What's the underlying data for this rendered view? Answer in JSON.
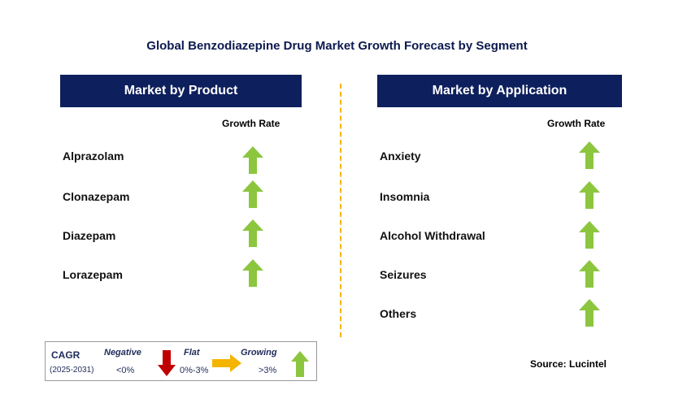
{
  "title": "Global Benzodiazepine Drug Market Growth Forecast by Segment",
  "left_panel": {
    "header": "Market by Product",
    "growth_label": "Growth Rate",
    "items": [
      {
        "label": "Alprazolam",
        "trend": "growing"
      },
      {
        "label": "Clonazepam",
        "trend": "growing"
      },
      {
        "label": "Diazepam",
        "trend": "growing"
      },
      {
        "label": "Lorazepam",
        "trend": "growing"
      }
    ]
  },
  "right_panel": {
    "header": "Market by Application",
    "growth_label": "Growth Rate",
    "items": [
      {
        "label": "Anxiety",
        "trend": "growing"
      },
      {
        "label": "Insomnia",
        "trend": "growing"
      },
      {
        "label": "Alcohol Withdrawal",
        "trend": "growing"
      },
      {
        "label": "Seizures",
        "trend": "growing"
      },
      {
        "label": "Others",
        "trend": "growing"
      }
    ]
  },
  "legend": {
    "cagr": "CAGR",
    "period": "(2025-2031)",
    "negative_label": "Negative",
    "negative_range": "<0%",
    "flat_label": "Flat",
    "flat_range": "0%-3%",
    "growing_label": "Growing",
    "growing_range": ">3%"
  },
  "source": "Source: Lucintel",
  "colors": {
    "header_bg": "#0d1f5c",
    "growing": "#8cc63f",
    "negative": "#c00000",
    "flat": "#f4b400",
    "divider": "#f4b400"
  }
}
